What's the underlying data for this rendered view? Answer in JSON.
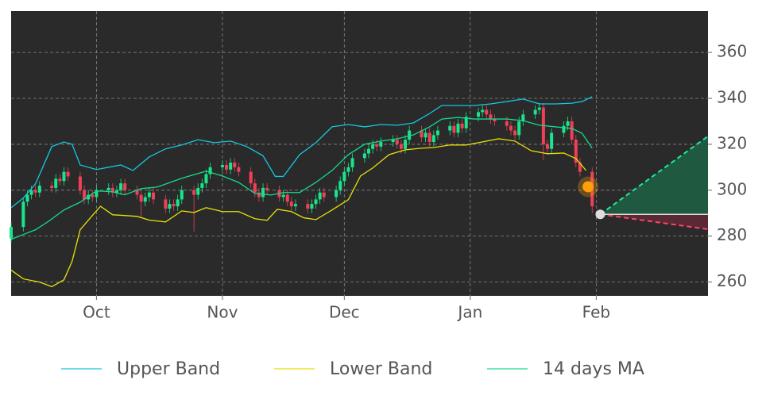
{
  "chart_data": {
    "type": "candlestick",
    "background": "#2a2a2a",
    "grid": true,
    "xlim": [
      0,
      171.5
    ],
    "xticks": [
      {
        "value": 21,
        "label": "Oct"
      },
      {
        "value": 52,
        "label": "Nov"
      },
      {
        "value": 82,
        "label": "Dec"
      },
      {
        "value": 113,
        "label": "Jan"
      },
      {
        "value": 144,
        "label": "Feb"
      }
    ],
    "ylim": [
      254,
      378
    ],
    "yticks": [
      260,
      280,
      300,
      320,
      340,
      360
    ],
    "candles": {
      "up_color": "#19e68c",
      "down_color": "#ef4058",
      "x": [
        0,
        3,
        4,
        5,
        6,
        7,
        10,
        11,
        12,
        13,
        14,
        17,
        18,
        19,
        20,
        21,
        24,
        25,
        26,
        27,
        28,
        31,
        32,
        33,
        34,
        35,
        38,
        39,
        40,
        41,
        42,
        45,
        46,
        47,
        48,
        49,
        52,
        53,
        54,
        55,
        56,
        59,
        60,
        61,
        62,
        63,
        66,
        67,
        68,
        69,
        70,
        73,
        74,
        75,
        76,
        77,
        80,
        81,
        82,
        83,
        84,
        87,
        88,
        89,
        90,
        91,
        94,
        95,
        96,
        97,
        98,
        101,
        102,
        103,
        104,
        105,
        108,
        109,
        110,
        111,
        112,
        115,
        116,
        117,
        118,
        119,
        122,
        123,
        124,
        125,
        126,
        129,
        130,
        131,
        132,
        133,
        136,
        137,
        138,
        139,
        140,
        143
      ],
      "open": [
        279,
        284,
        295,
        298,
        300,
        299,
        302,
        301,
        305,
        304,
        308,
        306,
        300,
        296,
        298,
        297,
        300,
        301,
        299,
        300,
        303,
        300,
        298,
        295,
        297,
        299,
        296,
        292,
        294,
        293,
        296,
        300,
        298,
        301,
        303,
        307,
        310,
        311,
        309,
        312,
        310,
        308,
        303,
        299,
        297,
        301,
        300,
        297,
        298,
        295,
        293,
        294,
        292,
        294,
        296,
        299,
        297,
        300,
        304,
        308,
        310,
        314,
        316,
        318,
        320,
        319,
        321,
        322,
        320,
        318,
        322,
        326,
        323,
        325,
        321,
        324,
        326,
        328,
        325,
        329,
        327,
        332,
        334,
        335,
        333,
        331,
        330,
        328,
        326,
        324,
        330,
        333,
        335,
        336,
        320,
        318,
        325,
        328,
        330,
        322,
        312,
        308
      ],
      "high": [
        286,
        297,
        300,
        302,
        302,
        304,
        304,
        307,
        307,
        310,
        310,
        308,
        302,
        300,
        300,
        302,
        303,
        303,
        302,
        305,
        305,
        302,
        300,
        299,
        301,
        301,
        298,
        296,
        296,
        298,
        302,
        302,
        303,
        305,
        309,
        312,
        313,
        313,
        314,
        314,
        312,
        310,
        305,
        301,
        303,
        303,
        302,
        300,
        300,
        297,
        296,
        296,
        296,
        298,
        301,
        301,
        302,
        306,
        310,
        312,
        316,
        318,
        320,
        322,
        322,
        323,
        324,
        324,
        322,
        324,
        328,
        328,
        327,
        327,
        326,
        328,
        330,
        330,
        331,
        331,
        334,
        336,
        337,
        337,
        335,
        333,
        332,
        330,
        328,
        332,
        335,
        337,
        338,
        338,
        322,
        327,
        330,
        332,
        332,
        324,
        314,
        310
      ],
      "low": [
        277,
        282,
        293,
        296,
        297,
        297,
        299,
        299,
        302,
        302,
        304,
        298,
        294,
        294,
        295,
        295,
        298,
        297,
        297,
        298,
        298,
        296,
        288,
        293,
        295,
        294,
        290,
        290,
        291,
        291,
        294,
        282,
        296,
        299,
        301,
        305,
        308,
        307,
        307,
        308,
        306,
        301,
        297,
        295,
        295,
        298,
        295,
        295,
        293,
        291,
        291,
        290,
        290,
        292,
        294,
        295,
        295,
        298,
        302,
        306,
        308,
        312,
        314,
        316,
        317,
        317,
        319,
        318,
        316,
        316,
        320,
        321,
        321,
        319,
        319,
        322,
        324,
        323,
        323,
        325,
        325,
        330,
        332,
        331,
        329,
        328,
        326,
        324,
        322,
        322,
        328,
        331,
        333,
        313,
        316,
        316,
        323,
        326,
        320,
        310,
        306,
        290
      ],
      "close": [
        284,
        295,
        298,
        300,
        299,
        302,
        301,
        305,
        304,
        308,
        306,
        300,
        296,
        298,
        297,
        300,
        301,
        299,
        300,
        303,
        300,
        298,
        295,
        297,
        299,
        296,
        292,
        294,
        293,
        296,
        300,
        298,
        301,
        303,
        307,
        310,
        311,
        309,
        312,
        310,
        308,
        303,
        299,
        297,
        301,
        300,
        297,
        298,
        295,
        293,
        294,
        292,
        294,
        296,
        299,
        297,
        300,
        304,
        308,
        310,
        314,
        316,
        318,
        320,
        319,
        321,
        322,
        320,
        318,
        322,
        326,
        323,
        325,
        321,
        324,
        326,
        328,
        325,
        329,
        327,
        332,
        334,
        335,
        333,
        331,
        330,
        328,
        326,
        324,
        330,
        333,
        335,
        336,
        320,
        318,
        325,
        328,
        330,
        322,
        312,
        308,
        293
      ]
    },
    "series": [
      {
        "name": "Upper Band",
        "color": "#14c8e0",
        "x": [
          0,
          3,
          6,
          10,
          13,
          15,
          17,
          21,
          27,
          30,
          34,
          38,
          42,
          46,
          50,
          54,
          58,
          62,
          65,
          67,
          71,
          75,
          79,
          83,
          87,
          91,
          95,
          99,
          103,
          106,
          110,
          114,
          118,
          122,
          126,
          130,
          134,
          138,
          140.5,
          143
        ],
        "values": [
          292.4,
          296.6,
          302.8,
          319,
          321,
          320,
          311,
          309,
          311,
          308.6,
          314.5,
          318,
          319.7,
          322,
          320.7,
          321.4,
          319,
          315,
          306,
          306,
          315.5,
          320.7,
          327.6,
          328.6,
          327.6,
          328.6,
          328.3,
          329.3,
          333.4,
          336.9,
          336.9,
          336.9,
          337.6,
          338.6,
          339.7,
          337.6,
          337.6,
          337.9,
          338.6,
          340.7
        ]
      },
      {
        "name": "Lower Band",
        "color": "#e6e00a",
        "x": [
          0,
          3,
          7,
          10,
          13,
          15,
          17,
          20,
          22,
          25,
          28,
          31,
          34,
          38,
          42,
          45,
          48,
          52,
          56,
          60,
          63,
          65.5,
          69,
          72,
          75,
          79,
          83,
          86,
          89,
          93,
          97,
          101,
          104,
          108,
          112,
          115,
          120,
          124,
          128,
          132,
          136,
          139,
          141.5
        ],
        "values": [
          265.2,
          261.4,
          260,
          258,
          261,
          269,
          282.8,
          289,
          293,
          289.3,
          289,
          288.6,
          287,
          286.2,
          291,
          290.3,
          292.4,
          290.7,
          290.7,
          287.6,
          286.9,
          291.7,
          290.7,
          288,
          287.2,
          291.4,
          295.9,
          306.2,
          309.7,
          315.5,
          317.6,
          318.3,
          318.6,
          319.7,
          319.7,
          320.7,
          322.4,
          321.4,
          317.2,
          315.9,
          316.2,
          313.8,
          308.6
        ]
      },
      {
        "name": "14 days MA",
        "color": "#14dc8c",
        "x": [
          0,
          3,
          6,
          9,
          13,
          17,
          21,
          25,
          28,
          32,
          36,
          42,
          48,
          52,
          56,
          60,
          64,
          67,
          71,
          75,
          79,
          83,
          87,
          91,
          95,
          99,
          103,
          106,
          110,
          114,
          118,
          122,
          126,
          130,
          134,
          138,
          140.5,
          143
        ],
        "values": [
          278.6,
          280.7,
          282.8,
          286.2,
          291.4,
          294.8,
          299.7,
          299.3,
          298,
          300.7,
          301.4,
          305.2,
          308.3,
          306.2,
          303.4,
          298.6,
          297.9,
          299,
          299,
          303.4,
          308.6,
          315.5,
          320,
          321.4,
          322.4,
          324.1,
          327.6,
          331,
          331.7,
          331,
          331,
          331,
          330.3,
          328.3,
          327.6,
          326.9,
          324.8,
          318.3
        ]
      }
    ],
    "signal": {
      "x": 142,
      "value": 301.5,
      "color": "#ff9f0a"
    },
    "forecast": {
      "x": [
        145,
        171.5
      ],
      "start": 289.5,
      "upper": [
        289.5,
        323.5
      ],
      "lower": [
        289.5,
        283
      ],
      "start_color": "#dddddd",
      "upper_color": "#1de9a0",
      "upper_fill": "#1f5a40",
      "lower_color": "#ff4468",
      "lower_fill": "#5a2a34"
    }
  }
}
